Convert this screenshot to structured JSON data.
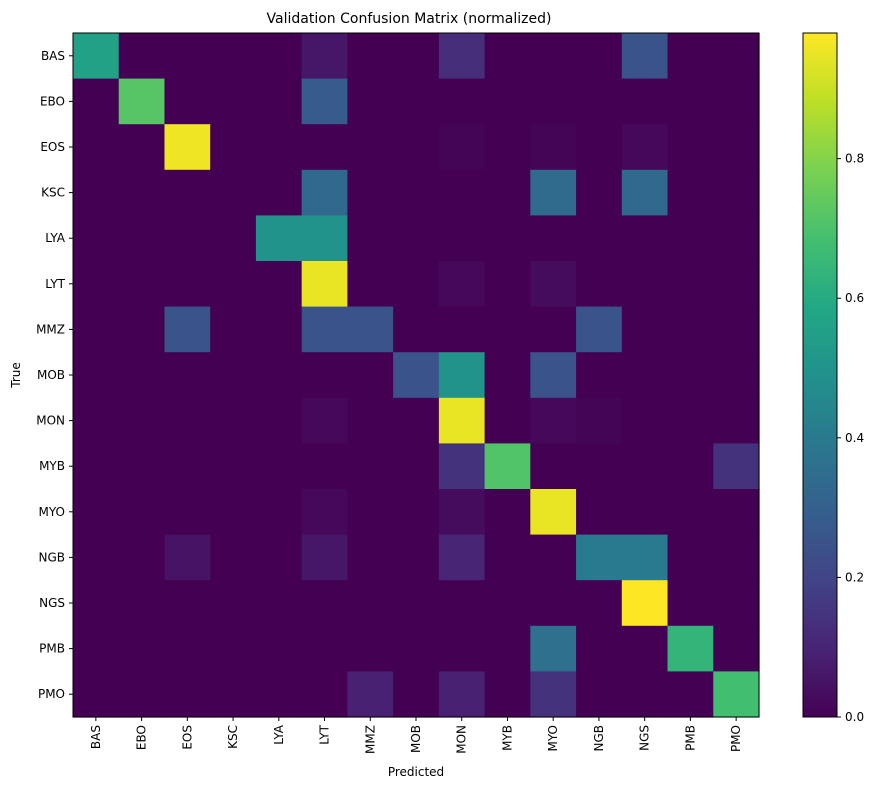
{
  "chart_data": {
    "type": "heatmap",
    "title": "Validation Confusion Matrix (normalized)",
    "xlabel": "Predicted",
    "ylabel": "True",
    "x_categories": [
      "BAS",
      "EBO",
      "EOS",
      "KSC",
      "LYA",
      "LYT",
      "MMZ",
      "MOB",
      "MON",
      "MYB",
      "MYO",
      "NGB",
      "NGS",
      "PMB",
      "PMO"
    ],
    "y_categories": [
      "BAS",
      "EBO",
      "EOS",
      "KSC",
      "LYA",
      "LYT",
      "MMZ",
      "MOB",
      "MON",
      "MYB",
      "MYO",
      "NGB",
      "NGS",
      "PMB",
      "PMO"
    ],
    "values": [
      [
        0.56,
        0,
        0,
        0,
        0,
        0.06,
        0,
        0,
        0.13,
        0,
        0,
        0,
        0.25,
        0,
        0
      ],
      [
        0,
        0.72,
        0,
        0,
        0,
        0.28,
        0,
        0,
        0,
        0,
        0,
        0,
        0,
        0,
        0
      ],
      [
        0,
        0,
        0.96,
        0,
        0,
        0,
        0,
        0,
        0.01,
        0,
        0.01,
        0,
        0.02,
        0,
        0
      ],
      [
        0,
        0,
        0,
        0,
        0,
        0.33,
        0,
        0,
        0,
        0,
        0.34,
        0,
        0.33,
        0,
        0
      ],
      [
        0,
        0,
        0,
        0,
        0.5,
        0.5,
        0,
        0,
        0,
        0,
        0,
        0,
        0,
        0,
        0
      ],
      [
        0,
        0,
        0,
        0,
        0,
        0.95,
        0,
        0,
        0.02,
        0,
        0.03,
        0,
        0,
        0,
        0
      ],
      [
        0,
        0,
        0.25,
        0,
        0,
        0.25,
        0.25,
        0,
        0,
        0,
        0,
        0.25,
        0,
        0,
        0
      ],
      [
        0,
        0,
        0,
        0,
        0,
        0,
        0,
        0.25,
        0.5,
        0,
        0.25,
        0,
        0,
        0,
        0
      ],
      [
        0,
        0,
        0,
        0,
        0,
        0.02,
        0,
        0,
        0.95,
        0,
        0.02,
        0.01,
        0,
        0,
        0
      ],
      [
        0,
        0,
        0,
        0,
        0,
        0,
        0,
        0,
        0.14,
        0.71,
        0,
        0,
        0,
        0,
        0.14
      ],
      [
        0,
        0,
        0,
        0,
        0,
        0.02,
        0,
        0,
        0.03,
        0,
        0.95,
        0,
        0,
        0,
        0
      ],
      [
        0,
        0,
        0.05,
        0,
        0,
        0.06,
        0,
        0,
        0.1,
        0,
        0,
        0.4,
        0.4,
        0,
        0
      ],
      [
        0,
        0,
        0,
        0,
        0,
        0,
        0,
        0,
        0,
        0,
        0,
        0,
        1.0,
        0,
        0
      ],
      [
        0,
        0,
        0,
        0,
        0,
        0,
        0,
        0,
        0,
        0,
        0.36,
        0,
        0,
        0.64,
        0
      ],
      [
        0,
        0,
        0,
        0,
        0,
        0,
        0.09,
        0,
        0.09,
        0,
        0.14,
        0,
        0,
        0,
        0.68
      ]
    ],
    "colormap": "viridis",
    "colorbar": {
      "range": [
        0,
        0.98
      ],
      "ticks": [
        0.0,
        0.2,
        0.4,
        0.6,
        0.8
      ],
      "tick_labels": [
        "0.0",
        "0.2",
        "0.4",
        "0.6",
        "0.8"
      ]
    },
    "grid": false,
    "legend": "none"
  }
}
